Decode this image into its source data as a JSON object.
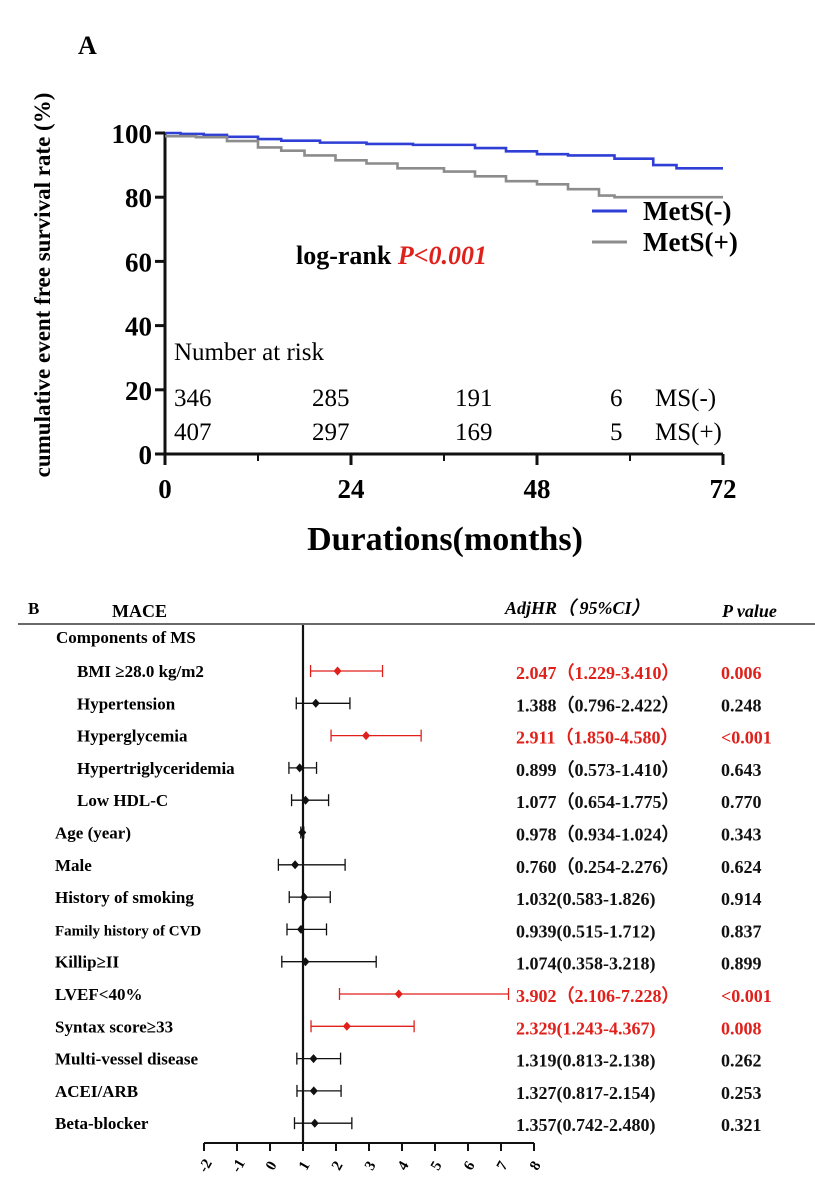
{
  "panel_a": {
    "label": "A",
    "log_rank_prefix": "log-rank ",
    "log_rank_p": "P<0.001",
    "risk_header": "Number at risk",
    "chart_data": {
      "type": "line",
      "xlabel": "Durations(months)",
      "ylabel": "cumulative event free survival rate (%)",
      "xlim": [
        0,
        72
      ],
      "ylim": [
        0,
        100
      ],
      "x_ticks": [
        0,
        24,
        48,
        72
      ],
      "y_ticks": [
        0,
        20,
        40,
        60,
        80,
        100
      ],
      "legend_position": "right",
      "series": [
        {
          "name": "MetS(-)",
          "color": "#2f3fd6",
          "x": [
            0,
            2,
            5,
            8,
            12,
            15,
            20,
            26,
            32,
            40,
            44,
            48,
            52,
            58,
            63,
            66,
            72
          ],
          "y": [
            100,
            99.7,
            99.4,
            98.8,
            98.1,
            97.6,
            97.0,
            96.6,
            96.3,
            95.3,
            94.3,
            93.4,
            93.0,
            92.0,
            90.0,
            89.0,
            89.0
          ]
        },
        {
          "name": "MetS(+)",
          "color": "#8c8c8c",
          "x": [
            0,
            4,
            8,
            12,
            15,
            18,
            22,
            26,
            30,
            36,
            40,
            44,
            48,
            52,
            56,
            58,
            72
          ],
          "y": [
            99,
            98.7,
            97.5,
            95.5,
            94.5,
            93.0,
            91.5,
            90.5,
            89.0,
            88.0,
            86.5,
            85.0,
            84.0,
            82.5,
            80.5,
            80.0,
            80.0
          ]
        }
      ],
      "risk_table": {
        "rows": [
          {
            "label": "MS(-)",
            "values": [
              "346",
              "285",
              "191",
              "6"
            ]
          },
          {
            "label": "MS(+)",
            "values": [
              "407",
              "297",
              "169",
              "5"
            ]
          }
        ]
      }
    }
  },
  "panel_b": {
    "label": "B",
    "header": {
      "title": "MACE",
      "hr_col": "AdjHR（ 95%CI）",
      "p_col": "P value"
    },
    "group_label": "Components of MS",
    "chart_data": {
      "type": "forest",
      "xlim": [
        -2,
        8
      ],
      "x_ticks": [
        -2,
        -1,
        0,
        1,
        2,
        3,
        4,
        5,
        6,
        7,
        8
      ],
      "reference_line": 1,
      "significant_color": "#e0201b",
      "default_color": "#111111",
      "rows": [
        {
          "label": "BMI ≥28.0 kg/m2",
          "hr": 2.047,
          "lo": 1.229,
          "hi": 3.41,
          "hr_text": "2.047（1.229-3.410）",
          "p": "0.006",
          "significant": true,
          "indent": true
        },
        {
          "label": "Hypertension",
          "hr": 1.388,
          "lo": 0.796,
          "hi": 2.422,
          "hr_text": "1.388（0.796-2.422）",
          "p": "0.248",
          "significant": false,
          "indent": true
        },
        {
          "label": "Hyperglycemia",
          "hr": 2.911,
          "lo": 1.85,
          "hi": 4.58,
          "hr_text": "2.911（1.850-4.580）",
          "p": "<0.001",
          "significant": true,
          "indent": true
        },
        {
          "label": "Hypertriglyceridemia",
          "hr": 0.899,
          "lo": 0.573,
          "hi": 1.41,
          "hr_text": "0.899（0.573-1.410）",
          "p": "0.643",
          "significant": false,
          "indent": true
        },
        {
          "label": "Low HDL-C",
          "hr": 1.077,
          "lo": 0.654,
          "hi": 1.775,
          "hr_text": "1.077（0.654-1.775）",
          "p": "0.770",
          "significant": false,
          "indent": true
        },
        {
          "label": "Age (year)",
          "hr": 0.978,
          "lo": 0.934,
          "hi": 1.024,
          "hr_text": "0.978（0.934-1.024）",
          "p": "0.343",
          "significant": false,
          "indent": false
        },
        {
          "label": "Male",
          "hr": 0.76,
          "lo": 0.254,
          "hi": 2.276,
          "hr_text": "0.760（0.254-2.276）",
          "p": "0.624",
          "significant": false,
          "indent": false
        },
        {
          "label": "History of smoking",
          "hr": 1.032,
          "lo": 0.583,
          "hi": 1.826,
          "hr_text": "1.032(0.583-1.826)",
          "p": "0.914",
          "significant": false,
          "indent": false
        },
        {
          "label": "Family history of CVD",
          "hr": 0.939,
          "lo": 0.515,
          "hi": 1.712,
          "hr_text": "0.939(0.515-1.712)",
          "p": "0.837",
          "significant": false,
          "indent": false
        },
        {
          "label": "Killip≥II",
          "hr": 1.074,
          "lo": 0.358,
          "hi": 3.218,
          "hr_text": "1.074(0.358-3.218)",
          "p": "0.899",
          "significant": false,
          "indent": false
        },
        {
          "label": "LVEF<40%",
          "hr": 3.902,
          "lo": 2.106,
          "hi": 7.228,
          "hr_text": "3.902（2.106-7.228）",
          "p": "<0.001",
          "significant": true,
          "indent": false
        },
        {
          "label": "Syntax score≥33",
          "hr": 2.329,
          "lo": 1.243,
          "hi": 4.367,
          "hr_text": "2.329(1.243-4.367)",
          "p": "0.008",
          "significant": true,
          "indent": false
        },
        {
          "label": "Multi-vessel disease",
          "hr": 1.319,
          "lo": 0.813,
          "hi": 2.138,
          "hr_text": "1.319(0.813-2.138)",
          "p": "0.262",
          "significant": false,
          "indent": false
        },
        {
          "label": "ACEI/ARB",
          "hr": 1.327,
          "lo": 0.817,
          "hi": 2.154,
          "hr_text": "1.327(0.817-2.154)",
          "p": "0.253",
          "significant": false,
          "indent": false
        },
        {
          "label": "Beta-blocker",
          "hr": 1.357,
          "lo": 0.742,
          "hi": 2.48,
          "hr_text": "1.357(0.742-2.480)",
          "p": "0.321",
          "significant": false,
          "indent": false
        }
      ]
    }
  }
}
